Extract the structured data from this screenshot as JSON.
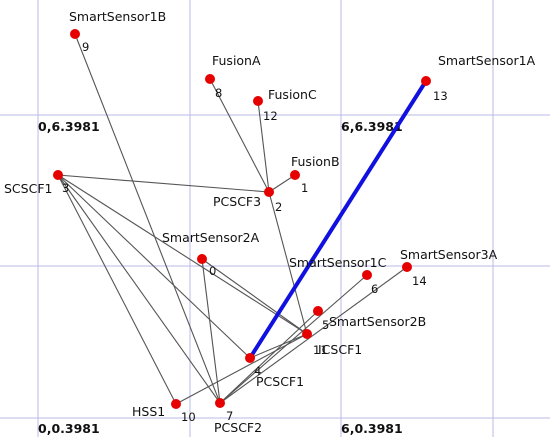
{
  "colors": {
    "node": "#e60000",
    "edge": "#555555",
    "highlight": "#1010e0",
    "grid": "#b9b9e6"
  },
  "coord_labels": [
    {
      "id": "tl",
      "text": "0,6.3981"
    },
    {
      "id": "tr",
      "text": "6,6.3981"
    },
    {
      "id": "bl",
      "text": "0,0.3981"
    },
    {
      "id": "br",
      "text": "6,0.3981"
    }
  ],
  "nodes": [
    {
      "id": "n0",
      "name": "SmartSensor2A",
      "num": "0"
    },
    {
      "id": "n1",
      "name": "FusionB",
      "num": "1"
    },
    {
      "id": "n2",
      "name": "PCSCF3",
      "num": "2"
    },
    {
      "id": "n3",
      "name": "SCSCF1",
      "num": "3"
    },
    {
      "id": "n4",
      "name": "PCSCF1",
      "num": "4"
    },
    {
      "id": "n5",
      "name": "SmartSensor2B",
      "num": "5"
    },
    {
      "id": "n6",
      "name": "SmartSensor1C",
      "num": "6"
    },
    {
      "id": "n7",
      "name": "PCSCF2",
      "num": "7"
    },
    {
      "id": "n8",
      "name": "FusionA",
      "num": "8"
    },
    {
      "id": "n9",
      "name": "SmartSensor1B",
      "num": "9"
    },
    {
      "id": "n10",
      "name": "HSS1",
      "num": "10"
    },
    {
      "id": "n11",
      "name": "ICSCF1",
      "num": "11"
    },
    {
      "id": "n12",
      "name": "FusionC",
      "num": "12"
    },
    {
      "id": "n13",
      "name": "SmartSensor1A",
      "num": "13"
    },
    {
      "id": "n14",
      "name": "SmartSensor3A",
      "num": "14"
    }
  ],
  "edges": [
    [
      "n3",
      "n2"
    ],
    [
      "n3",
      "n4"
    ],
    [
      "n3",
      "n10"
    ],
    [
      "n3",
      "n7"
    ],
    [
      "n3",
      "n11"
    ],
    [
      "n8",
      "n2"
    ],
    [
      "n12",
      "n2"
    ],
    [
      "n1",
      "n2"
    ],
    [
      "n2",
      "n11"
    ],
    [
      "n9",
      "n7"
    ],
    [
      "n0",
      "n11"
    ],
    [
      "n0",
      "n7"
    ],
    [
      "n4",
      "n11"
    ],
    [
      "n10",
      "n11"
    ],
    [
      "n7",
      "n14"
    ],
    [
      "n7",
      "n6"
    ],
    [
      "n5",
      "n7"
    ]
  ],
  "highlight_edges": [
    [
      "n4",
      "n13"
    ]
  ]
}
